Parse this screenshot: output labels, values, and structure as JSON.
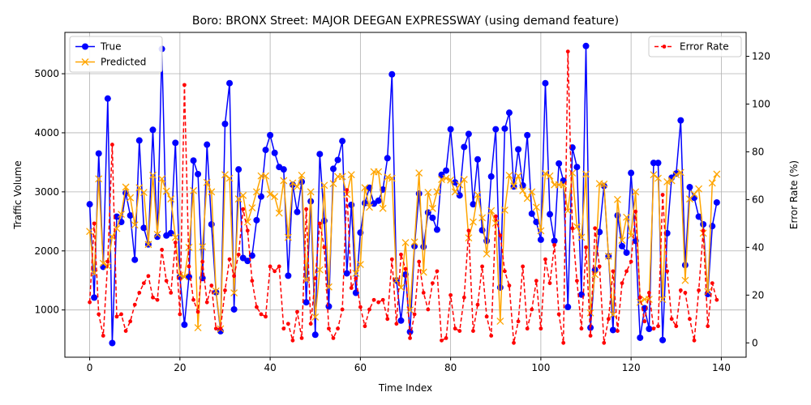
{
  "chart_data": {
    "type": "line",
    "title": "Boro: BRONX Street: MAJOR DEEGAN EXPRESSWAY (using demand feature)",
    "xlabel": "Time Index",
    "ylabel_left": "Traffic Volume",
    "ylabel_right": "Error Rate (%)",
    "xlim": [
      -5.5,
      145.5
    ],
    "ylim_left": [
      200,
      5700
    ],
    "ylim_right": [
      -6,
      130
    ],
    "x_ticks": [
      0,
      20,
      40,
      60,
      80,
      100,
      120,
      140
    ],
    "y_ticks_left": [
      1000,
      2000,
      3000,
      4000,
      5000
    ],
    "y_ticks_right": [
      0,
      20,
      40,
      60,
      80,
      100,
      120
    ],
    "grid": true,
    "legend_left_position": "upper-left",
    "legend_right_position": "upper-right",
    "series": [
      {
        "name": "True",
        "axis": "left",
        "color": "#0000ff",
        "marker": "circle",
        "values": [
          2790,
          1210,
          3650,
          1730,
          4580,
          440,
          2580,
          2490,
          2980,
          2600,
          1850,
          3870,
          2390,
          2110,
          4050,
          2240,
          5420,
          2260,
          2300,
          3830,
          1560,
          750,
          1560,
          3530,
          3300,
          1540,
          3800,
          2450,
          1300,
          640,
          4150,
          4840,
          1010,
          3380,
          1880,
          1830,
          1920,
          2520,
          2920,
          3710,
          3960,
          3660,
          3420,
          3380,
          1580,
          3120,
          2660,
          3170,
          1130,
          2840,
          580,
          3640,
          2510,
          1060,
          3390,
          3540,
          3860,
          1620,
          2780,
          1290,
          2310,
          2810,
          3070,
          2800,
          2850,
          3040,
          3570,
          4990,
          1500,
          820,
          1600,
          630,
          2080,
          2970,
          2070,
          2650,
          2560,
          2360,
          3290,
          3360,
          4060,
          3160,
          2940,
          3760,
          3980,
          2790,
          3550,
          2350,
          2170,
          3260,
          4060,
          1380,
          4070,
          4340,
          3090,
          3720,
          3110,
          3960,
          2630,
          2490,
          2190,
          4840,
          2620,
          2170,
          3480,
          3190,
          1050,
          3750,
          3420,
          1260,
          5470,
          700,
          1680,
          2320,
          3100,
          1910,
          660,
          2600,
          2080,
          1970,
          3320,
          2170,
          530,
          1030,
          680,
          3490,
          3490,
          490,
          2300,
          3240,
          3310,
          4210,
          1760,
          3080,
          2900,
          2580,
          2450,
          1270,
          2420,
          2820
        ]
      },
      {
        "name": "Predicted",
        "axis": "left",
        "color": "#ffa500",
        "marker": "x",
        "values": [
          2330,
          1620,
          3220,
          1790,
          1740,
          2240,
          2380,
          2620,
          3080,
          2900,
          2440,
          3070,
          2990,
          2110,
          3280,
          2280,
          3220,
          3010,
          2880,
          2230,
          1590,
          1560,
          2060,
          3020,
          700,
          2070,
          3160,
          3000,
          1320,
          680,
          3290,
          3230,
          1290,
          2880,
          2940,
          2490,
          2730,
          3000,
          3270,
          3270,
          2960,
          2920,
          2640,
          3190,
          2230,
          3150,
          3090,
          3280,
          1510,
          3000,
          880,
          1680,
          3110,
          1390,
          3140,
          3260,
          3260,
          2960,
          3290,
          1620,
          1770,
          3070,
          2740,
          3340,
          3340,
          2720,
          3250,
          3230,
          1500,
          1380,
          2140,
          1000,
          2150,
          3320,
          1640,
          2990,
          2720,
          3000,
          3210,
          3230,
          3200,
          3000,
          3120,
          3210,
          2220,
          2490,
          2950,
          2560,
          1950,
          2680,
          2470,
          810,
          2690,
          3280,
          3100,
          3270,
          3020,
          2890,
          3000,
          2740,
          2340,
          3310,
          3270,
          3120,
          3120,
          3120,
          2680,
          3320,
          2410,
          2230,
          3300,
          950,
          1600,
          3140,
          3130,
          1910,
          920,
          2870,
          2180,
          2570,
          2260,
          3000,
          1130,
          1180,
          1180,
          3290,
          3230,
          1180,
          3170,
          3190,
          3290,
          3330,
          1500,
          2880,
          2960,
          3050,
          2300,
          1310,
          3150,
          3300
        ]
      },
      {
        "name": "Error Rate",
        "axis": "right",
        "color": "#ff0000",
        "marker": "dot",
        "values": [
          17,
          50,
          12,
          3,
          34,
          83,
          11,
          12,
          5,
          9,
          16,
          21,
          25,
          28,
          19,
          18,
          39,
          26,
          21,
          42,
          12,
          108,
          32,
          18,
          13,
          34,
          17,
          24,
          6,
          6,
          22,
          35,
          28,
          37,
          56,
          47,
          26,
          15,
          12,
          11,
          32,
          30,
          32,
          6,
          8,
          1,
          13,
          2,
          56,
          8,
          27,
          50,
          40,
          6,
          2,
          6,
          14,
          64,
          23,
          27,
          15,
          7,
          14,
          18,
          17,
          18,
          10,
          35,
          8,
          37,
          31,
          2,
          12,
          34,
          21,
          14,
          25,
          30,
          1,
          2,
          20,
          6,
          5,
          19,
          47,
          5,
          16,
          32,
          11,
          3,
          53,
          45,
          30,
          24,
          0,
          9,
          32,
          6,
          14,
          26,
          6,
          35,
          25,
          41,
          12,
          0,
          122,
          48,
          26,
          6,
          40,
          3,
          48,
          32,
          0,
          10,
          30,
          5,
          25,
          30,
          34,
          55,
          19,
          9,
          21,
          6,
          7,
          62,
          30,
          10,
          7,
          22,
          21,
          10,
          1,
          22,
          47,
          7,
          25,
          18
        ]
      }
    ]
  }
}
